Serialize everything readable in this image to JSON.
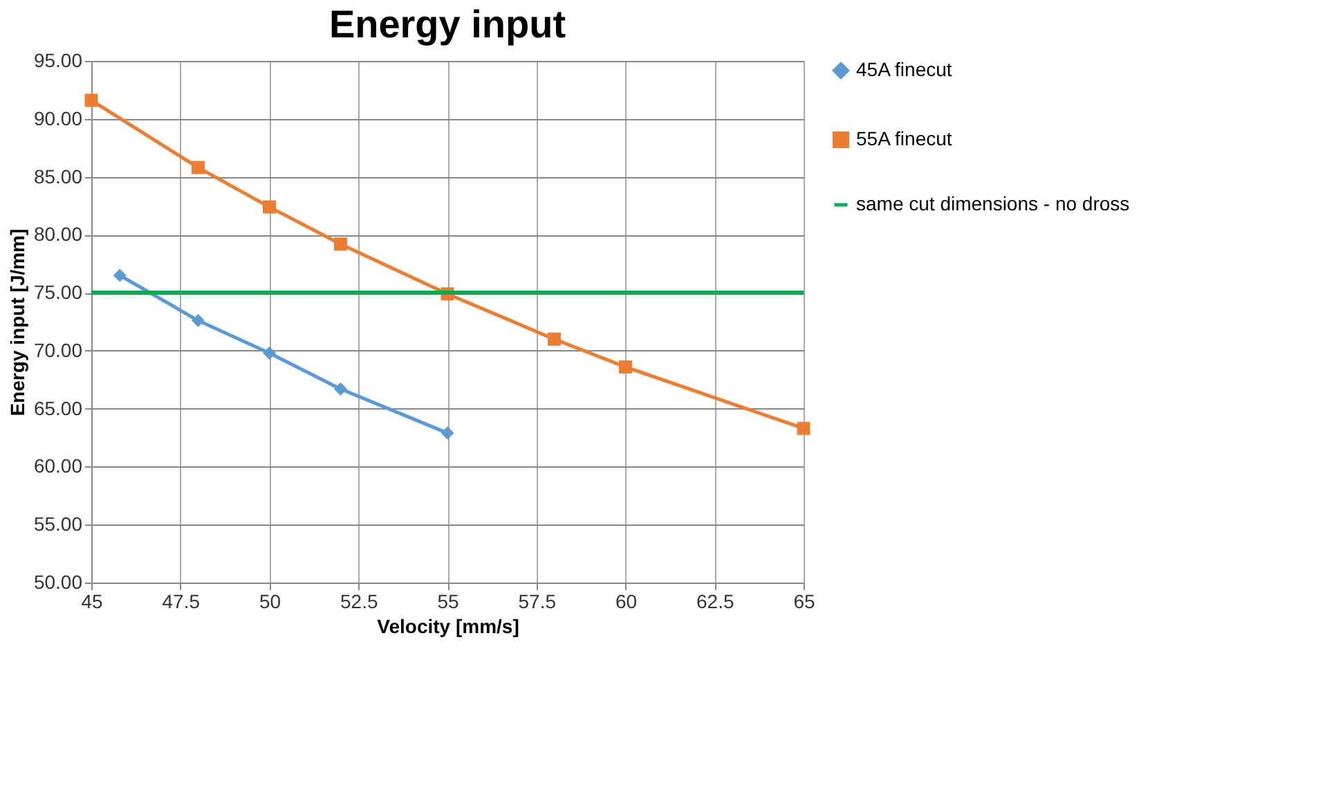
{
  "chart_data": {
    "type": "line",
    "title": "Energy input",
    "xlabel": "Velocity [mm/s]",
    "ylabel": "Energy input [J/mm]",
    "series": [
      {
        "name": "45A finecut",
        "color": "#5b9bd5",
        "marker": "diamond",
        "x": [
          45.8,
          48,
          50,
          52,
          55
        ],
        "values": [
          76.5,
          72.6,
          69.8,
          66.7,
          62.9
        ]
      },
      {
        "name": "55A finecut",
        "color": "#ed7d31",
        "marker": "square",
        "x": [
          45,
          48,
          50,
          52,
          55,
          58,
          60,
          65
        ],
        "values": [
          91.6,
          85.8,
          82.4,
          79.2,
          74.9,
          71.0,
          68.6,
          63.3
        ]
      }
    ],
    "ref_lines": [
      {
        "axis": "y",
        "value": 75,
        "label": "same cut dimensions - no dross",
        "color": "#00b050"
      }
    ],
    "xlim": [
      45,
      65
    ],
    "xticks": [
      45,
      47.5,
      50,
      52.5,
      55,
      57.5,
      60,
      62.5,
      65
    ],
    "ylim": [
      50,
      95
    ],
    "yticks": [
      {
        "value": 50,
        "label": "50.00"
      },
      {
        "value": 55,
        "label": "55.00"
      },
      {
        "value": 60,
        "label": "60.00"
      },
      {
        "value": 65,
        "label": "65.00"
      },
      {
        "value": 70,
        "label": "70.00"
      },
      {
        "value": 75,
        "label": "75.00"
      },
      {
        "value": 80,
        "label": "80.00"
      },
      {
        "value": 85,
        "label": "85.00"
      },
      {
        "value": 90,
        "label": "90.00"
      },
      {
        "value": 95,
        "label": "95.00"
      }
    ],
    "grid": true,
    "legend": "right",
    "line_style": "solid"
  }
}
